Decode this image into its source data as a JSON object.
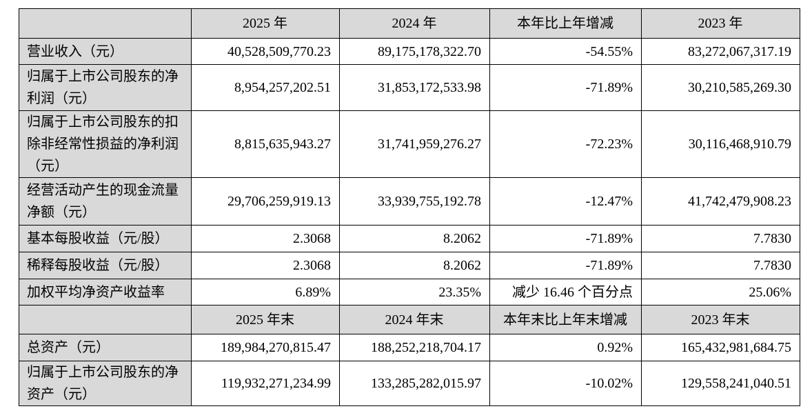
{
  "table": {
    "sections": [
      {
        "header": [
          "2025 年",
          "2024 年",
          "本年比上年增减",
          "2023 年"
        ],
        "rows": [
          {
            "label": "营业收入（元）",
            "cells": [
              "40,528,509,770.23",
              "89,175,178,322.70",
              "-54.55%",
              "83,272,067,317.19"
            ]
          },
          {
            "label": "归属于上市公司股东的净利润（元）",
            "cells": [
              "8,954,257,202.51",
              "31,853,172,533.98",
              "-71.89%",
              "30,210,585,269.30"
            ]
          },
          {
            "label": "归属于上市公司股东的扣除非经常性损益的净利润（元）",
            "cells": [
              "8,815,635,943.27",
              "31,741,959,276.27",
              "-72.23%",
              "30,116,468,910.79"
            ]
          },
          {
            "label": "经营活动产生的现金流量净额（元）",
            "cells": [
              "29,706,259,919.13",
              "33,939,755,192.78",
              "-12.47%",
              "41,742,479,908.23"
            ]
          },
          {
            "label": "基本每股收益（元/股）",
            "cells": [
              "2.3068",
              "8.2062",
              "-71.89%",
              "7.7830"
            ]
          },
          {
            "label": "稀释每股收益（元/股）",
            "cells": [
              "2.3068",
              "8.2062",
              "-71.89%",
              "7.7830"
            ]
          },
          {
            "label": "加权平均净资产收益率",
            "cells": [
              "6.89%",
              "23.35%",
              "减少 16.46 个百分点",
              "25.06%"
            ]
          }
        ]
      },
      {
        "header": [
          "2025 年末",
          "2024 年末",
          "本年末比上年末增减",
          "2023 年末"
        ],
        "rows": [
          {
            "label": "总资产（元）",
            "cells": [
              "189,984,270,815.47",
              "188,252,218,704.17",
              "0.92%",
              "165,432,981,684.75"
            ]
          },
          {
            "label": "归属于上市公司股东的净资产（元）",
            "cells": [
              "119,932,271,234.99",
              "133,285,282,015.97",
              "-10.02%",
              "129,558,241,040.51"
            ]
          }
        ]
      }
    ]
  }
}
